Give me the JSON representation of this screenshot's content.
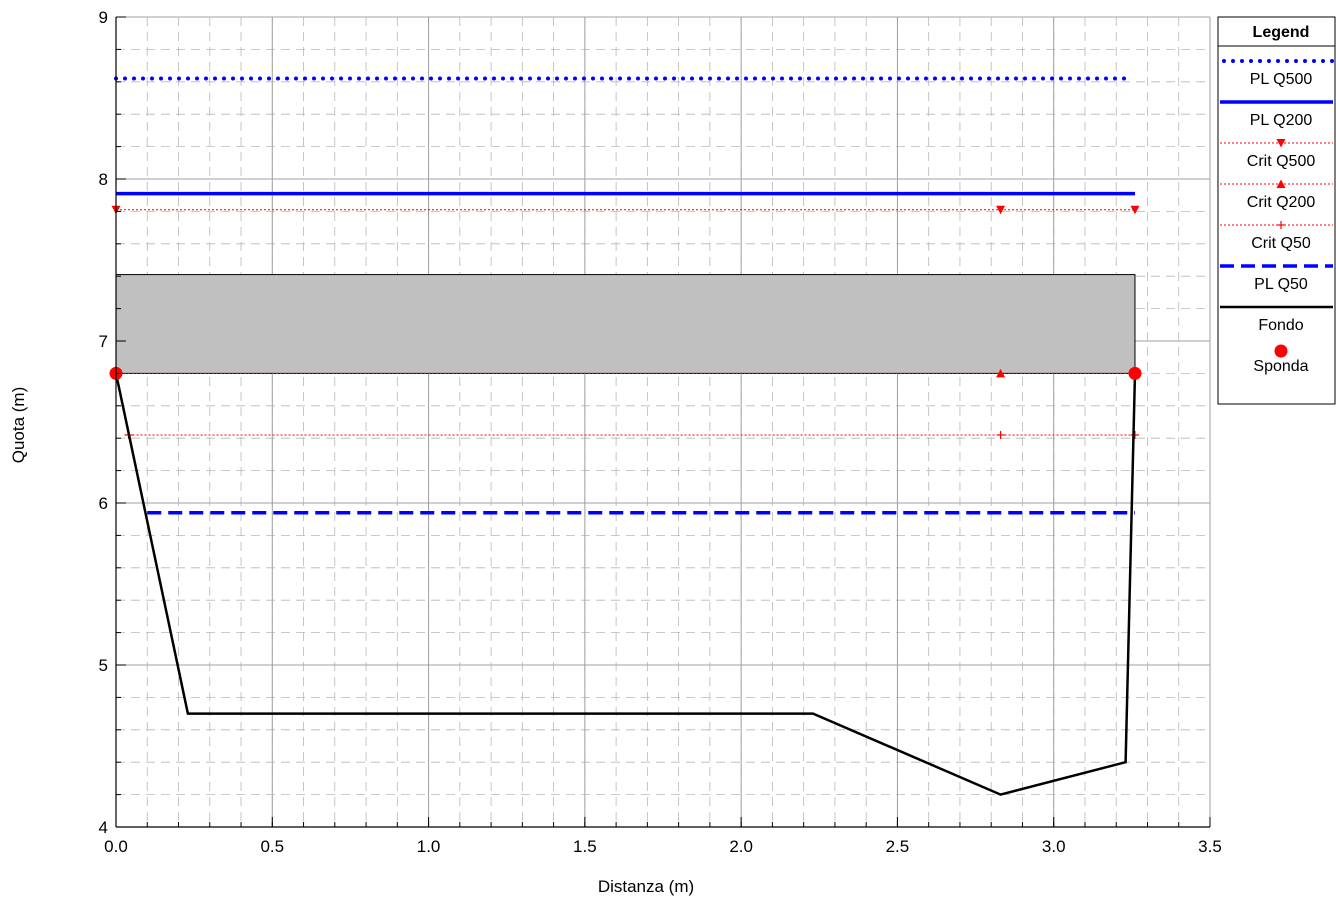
{
  "chart_data": {
    "type": "line",
    "xlabel": "Distanza (m)",
    "ylabel": "Quota (m)",
    "xlim": [
      0,
      3.5
    ],
    "ylim": [
      4,
      9
    ],
    "xticks": [
      0.0,
      0.5,
      1.0,
      1.5,
      2.0,
      2.5,
      3.0,
      3.5
    ],
    "xtick_labels": [
      "0.0",
      "0.5",
      "1.0",
      "1.5",
      "2.0",
      "2.5",
      "3.0",
      "3.5"
    ],
    "yticks": [
      4,
      5,
      6,
      7,
      8,
      9
    ],
    "ytick_labels": [
      "4",
      "5",
      "6",
      "7",
      "8",
      "9"
    ],
    "grid": true,
    "legend": {
      "title": "Legend",
      "placement": "right",
      "entries": [
        "PL Q500",
        "PL Q200",
        "Crit Q500",
        "Crit Q200",
        "Crit Q50",
        "PL Q50",
        "Fondo",
        "Sponda"
      ]
    },
    "shaded_region": {
      "x": [
        0.0,
        3.26
      ],
      "y": [
        6.8,
        7.41
      ],
      "color": "#c0c0c0"
    },
    "series": [
      {
        "name": "PL Q500",
        "style": "dotted",
        "color": "#0000ff",
        "x": [
          0.0,
          3.24
        ],
        "y": [
          8.62,
          8.62
        ]
      },
      {
        "name": "PL Q200",
        "style": "solid",
        "color": "#0000ff",
        "x": [
          0.0,
          3.26
        ],
        "y": [
          7.91,
          7.91
        ]
      },
      {
        "name": "Crit Q500",
        "style": "dotted",
        "color": "#ff0000",
        "marker": "triangle-down",
        "x": [
          0.0,
          3.26
        ],
        "y": [
          7.81,
          7.81
        ],
        "marker_x": [
          0.0,
          2.83,
          3.26
        ]
      },
      {
        "name": "Crit Q200",
        "style": "dotted",
        "color": "#ff0000",
        "marker": "triangle-up",
        "x": [
          0.0,
          3.26
        ],
        "y": [
          6.8,
          6.8
        ],
        "marker_x": [
          2.83
        ]
      },
      {
        "name": "Crit Q50",
        "style": "dotted",
        "color": "#ff0000",
        "marker": "plus",
        "x": [
          0.04,
          3.26
        ],
        "y": [
          6.42,
          6.42
        ],
        "marker_x": [
          0.04,
          2.83,
          3.26
        ]
      },
      {
        "name": "PL Q50",
        "style": "dashed",
        "color": "#0000ff",
        "x": [
          0.1,
          3.26
        ],
        "y": [
          5.94,
          5.94
        ]
      },
      {
        "name": "Fondo",
        "style": "solid",
        "color": "#000000",
        "x": [
          0.0,
          0.23,
          2.23,
          2.83,
          3.23,
          3.26
        ],
        "y": [
          6.8,
          4.7,
          4.7,
          4.2,
          4.4,
          6.8
        ]
      },
      {
        "name": "Sponda",
        "style": "marker",
        "color": "#ff0000",
        "marker": "circle",
        "x": [
          0.0,
          3.26
        ],
        "y": [
          6.8,
          6.8
        ]
      }
    ]
  }
}
